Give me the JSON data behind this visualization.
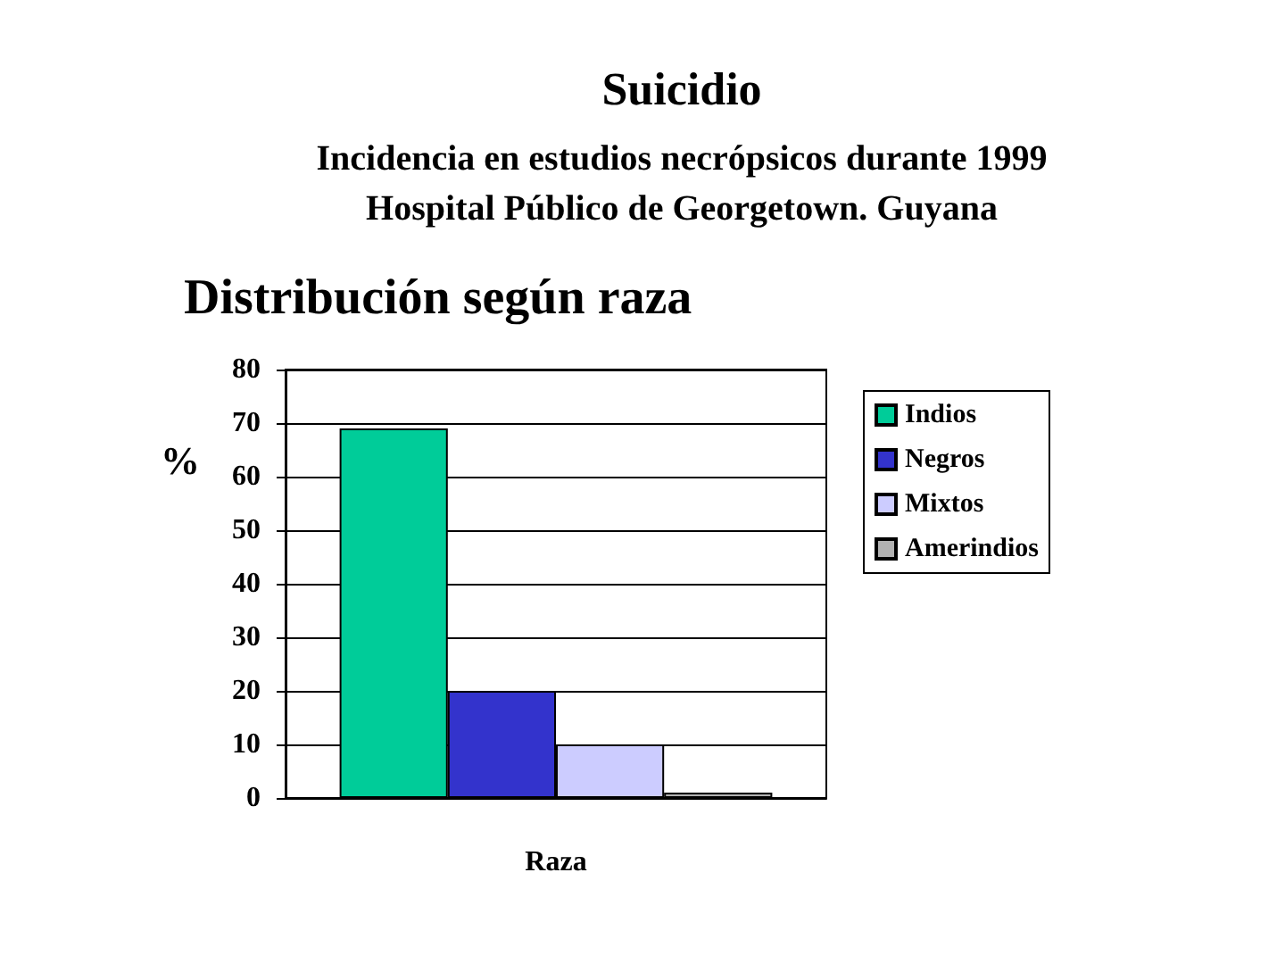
{
  "chart_data": {
    "type": "bar",
    "title": "Suicidio",
    "subtitle": "Incidencia en estudios necrópsicos durante 1999\nHospital Público de Georgetown. Guyana",
    "annotations": [
      "Distribución según raza"
    ],
    "xlabel": "Raza",
    "ylabel": "%",
    "categories": [
      null
    ],
    "series": [
      {
        "name": "Indios",
        "color": "#00cc99",
        "values": [
          69
        ]
      },
      {
        "name": "Negros",
        "color": "#3333cc",
        "values": [
          20
        ]
      },
      {
        "name": "Mixtos",
        "color": "#ccccff",
        "values": [
          10
        ]
      },
      {
        "name": "Amerindios",
        "color": "#b2b2b2",
        "values": [
          1
        ]
      }
    ],
    "ylim": [
      0,
      80
    ],
    "yticks": [
      0,
      10,
      20,
      30,
      40,
      50,
      60,
      70,
      80
    ],
    "grid": "y",
    "legend": "right"
  }
}
